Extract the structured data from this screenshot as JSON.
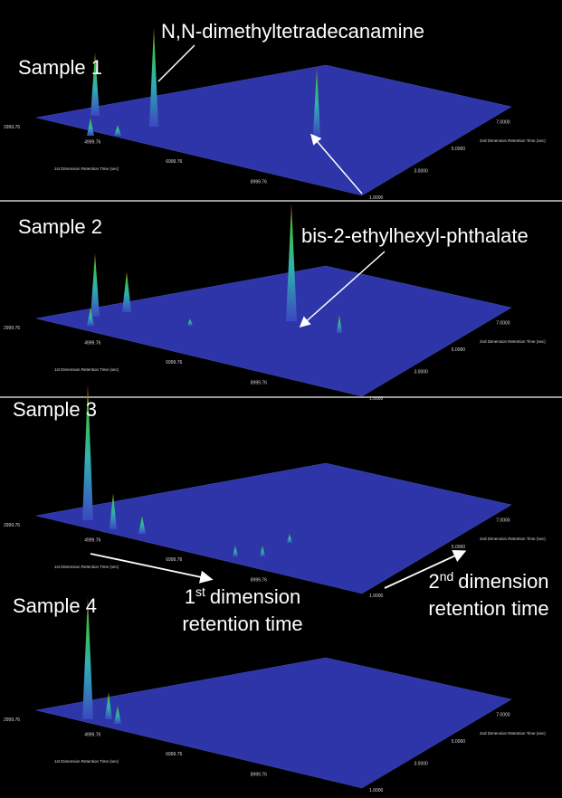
{
  "panels": [
    {
      "label": "Sample 1",
      "axis_title_1": "1st Dimension Retention Time (sec)",
      "axis_title_2": "2nd Dimension Retention Time (sec)",
      "ticks_1": [
        "2999.76",
        "4999.76",
        "6999.76",
        "8999.76"
      ],
      "ticks_2": [
        "1.0000",
        "3.0000",
        "5.0000",
        "7.0000"
      ],
      "annotation": "N,N-dimethyltetradecanamine"
    },
    {
      "label": "Sample 2",
      "axis_title_1": "1st Dimension Retention Time (sec)",
      "axis_title_2": "2nd Dimension Retention Time (sec)",
      "ticks_1": [
        "2999.76",
        "4999.76",
        "6999.76",
        "8999.76"
      ],
      "ticks_2": [
        "1.0000",
        "3.0000",
        "5.0000",
        "7.0000"
      ],
      "annotation": "bis-2-ethylhexyl-phthalate"
    },
    {
      "label": "Sample 3",
      "axis_title_1": "1st Dimension Retention Time (sec)",
      "axis_title_2": "2nd Dimension Retention Time (sec)",
      "ticks_1": [
        "2999.76",
        "4999.76",
        "6999.76",
        "8999.76"
      ],
      "ticks_2": [
        "1.0000",
        "5.0000",
        "7.0000"
      ]
    },
    {
      "label": "Sample 4",
      "axis_title_1": "1st Dimension Retention Time (sec)",
      "axis_title_2": "2nd Dimension Retention Time (sec)",
      "ticks_1": [
        "2999.76",
        "4999.76",
        "6999.76",
        "8999.76"
      ],
      "ticks_2": [
        "1.0000",
        "3.0000",
        "5.0000",
        "7.0000"
      ]
    }
  ],
  "axis_notes": {
    "first": {
      "ordinal": "1",
      "suffix": "st",
      "word": "dimension",
      "line2": "retention time"
    },
    "second": {
      "ordinal": "2",
      "suffix": "nd",
      "word": "dimension",
      "line2": "retention time"
    }
  }
}
